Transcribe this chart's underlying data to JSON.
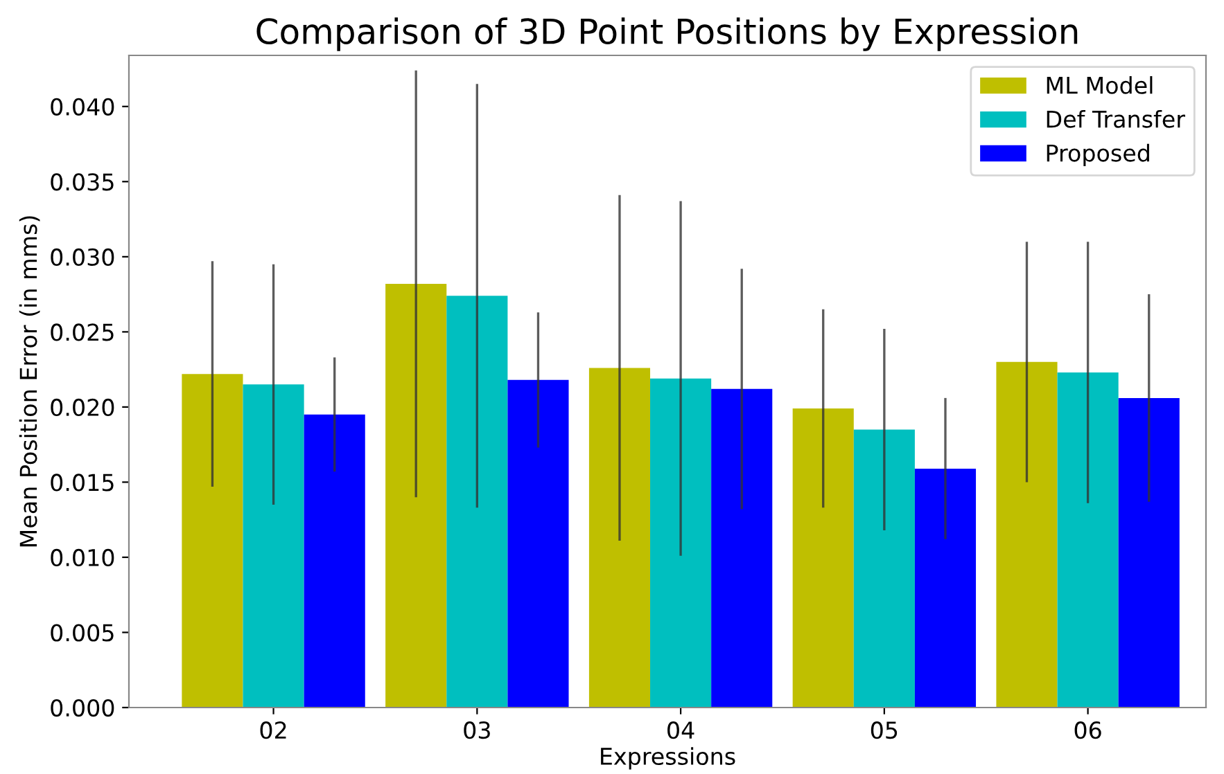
{
  "chart_data": {
    "type": "bar",
    "title": "Comparison of 3D Point Positions by Expression",
    "xlabel": "Expressions",
    "ylabel": "Mean Position Error (in mms)",
    "categories": [
      "02",
      "03",
      "04",
      "05",
      "06"
    ],
    "series": [
      {
        "name": "ML Model",
        "color": "#bfbf00",
        "values": [
          0.0222,
          0.0282,
          0.0226,
          0.0199,
          0.023
        ],
        "errors": [
          0.0075,
          0.0142,
          0.0115,
          0.0066,
          0.008
        ]
      },
      {
        "name": "Def Transfer",
        "color": "#00bfbf",
        "values": [
          0.0215,
          0.0274,
          0.0219,
          0.0185,
          0.0223
        ],
        "errors": [
          0.008,
          0.0141,
          0.0118,
          0.0067,
          0.0087
        ]
      },
      {
        "name": "Proposed",
        "color": "#0000ff",
        "values": [
          0.0195,
          0.0218,
          0.0212,
          0.0159,
          0.0206
        ],
        "errors": [
          0.0038,
          0.0045,
          0.008,
          0.0047,
          0.0069
        ]
      }
    ],
    "ylim": [
      0,
      0.0434
    ],
    "yticks": [
      {
        "value": 0,
        "label": "0.000"
      },
      {
        "value": 0.005,
        "label": "0.005"
      },
      {
        "value": 0.01,
        "label": "0.010"
      },
      {
        "value": 0.015,
        "label": "0.015"
      },
      {
        "value": 0.02,
        "label": "0.020"
      },
      {
        "value": 0.025,
        "label": "0.025"
      },
      {
        "value": 0.03,
        "label": "0.030"
      },
      {
        "value": 0.035,
        "label": "0.035"
      },
      {
        "value": 0.04,
        "label": "0.040"
      }
    ],
    "legend": "top right",
    "grid": false
  }
}
